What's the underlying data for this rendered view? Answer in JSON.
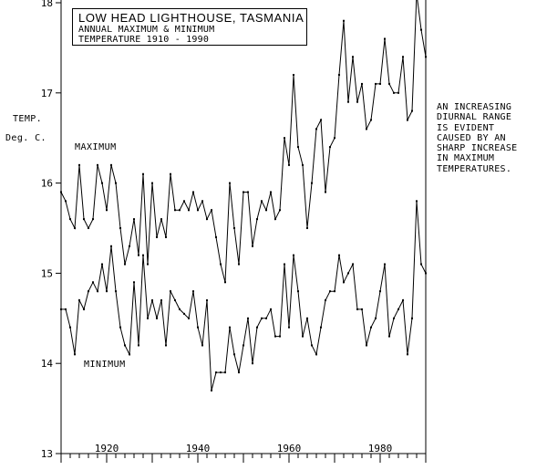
{
  "chart_data": {
    "type": "line",
    "title": "LOW HEAD LIGHTHOUSE, TASMANIA",
    "subtitle": [
      "ANNUAL MAXIMUM & MINIMUM",
      "TEMPERATURE 1910 - 1990"
    ],
    "ylabel": [
      "TEMP.",
      "Deg. C."
    ],
    "xlabel": "",
    "ylim": [
      13,
      18
    ],
    "xlim": [
      1910,
      1990
    ],
    "yticks": [
      "13",
      "14",
      "15",
      "16",
      "17",
      "18"
    ],
    "xticks": [
      "1920",
      "1940",
      "1960",
      "1980"
    ],
    "annotation": "AN INCREASING\nDIURNAL RANGE\nIS EVIDENT\nCAUSED BY AN\nSHARP INCREASE\nIN MAXIMUM\nTEMPERATURES.",
    "x": [
      1910,
      1911,
      1912,
      1913,
      1914,
      1915,
      1916,
      1917,
      1918,
      1919,
      1920,
      1921,
      1922,
      1923,
      1924,
      1925,
      1926,
      1927,
      1928,
      1929,
      1930,
      1931,
      1932,
      1933,
      1934,
      1935,
      1936,
      1937,
      1938,
      1939,
      1940,
      1941,
      1942,
      1943,
      1944,
      1945,
      1946,
      1947,
      1948,
      1949,
      1950,
      1951,
      1952,
      1953,
      1954,
      1955,
      1956,
      1957,
      1958,
      1959,
      1960,
      1961,
      1962,
      1963,
      1964,
      1965,
      1966,
      1967,
      1968,
      1969,
      1970,
      1971,
      1972,
      1973,
      1974,
      1975,
      1976,
      1977,
      1978,
      1979,
      1980,
      1981,
      1982,
      1983,
      1984,
      1985,
      1986,
      1987,
      1988,
      1989,
      1990
    ],
    "series": [
      {
        "name": "MAXIMUM",
        "values": [
          15.9,
          15.8,
          15.6,
          15.5,
          16.2,
          15.6,
          15.5,
          15.6,
          16.2,
          16.0,
          15.7,
          16.2,
          16.0,
          15.5,
          15.1,
          15.3,
          15.6,
          15.2,
          16.1,
          15.1,
          16.0,
          15.4,
          15.6,
          15.4,
          16.1,
          15.7,
          15.7,
          15.8,
          15.7,
          15.9,
          15.7,
          15.8,
          15.6,
          15.7,
          15.4,
          15.1,
          14.9,
          16.0,
          15.5,
          15.1,
          15.9,
          15.9,
          15.3,
          15.6,
          15.8,
          15.7,
          15.9,
          15.6,
          15.7,
          16.5,
          16.2,
          17.2,
          16.4,
          16.2,
          15.5,
          16.0,
          16.6,
          16.7,
          15.9,
          16.4,
          16.5,
          17.2,
          17.8,
          16.9,
          17.4,
          16.9,
          17.1,
          16.6,
          16.7,
          17.1,
          17.1,
          17.6,
          17.1,
          17.0,
          17.0,
          17.4,
          16.7,
          16.8,
          18.1,
          17.7,
          17.4
        ]
      },
      {
        "name": "MINIMUM",
        "values": [
          14.6,
          14.6,
          14.4,
          14.1,
          14.7,
          14.6,
          14.8,
          14.9,
          14.8,
          15.1,
          14.8,
          15.3,
          14.8,
          14.4,
          14.2,
          14.1,
          14.9,
          14.2,
          15.2,
          14.5,
          14.7,
          14.5,
          14.7,
          14.2,
          14.8,
          14.7,
          14.6,
          14.55,
          14.5,
          14.8,
          14.4,
          14.2,
          14.7,
          13.7,
          13.9,
          13.9,
          13.9,
          14.4,
          14.1,
          13.9,
          14.2,
          14.5,
          14.0,
          14.4,
          14.5,
          14.5,
          14.6,
          14.3,
          14.3,
          15.1,
          14.4,
          15.2,
          14.8,
          14.3,
          14.5,
          14.2,
          14.1,
          14.4,
          14.7,
          14.8,
          14.8,
          15.2,
          14.9,
          15.0,
          15.1,
          14.6,
          14.6,
          14.2,
          14.4,
          14.5,
          14.8,
          15.1,
          14.3,
          14.5,
          14.6,
          14.7,
          14.1,
          14.5,
          15.8,
          15.1,
          15.0
        ]
      }
    ]
  }
}
